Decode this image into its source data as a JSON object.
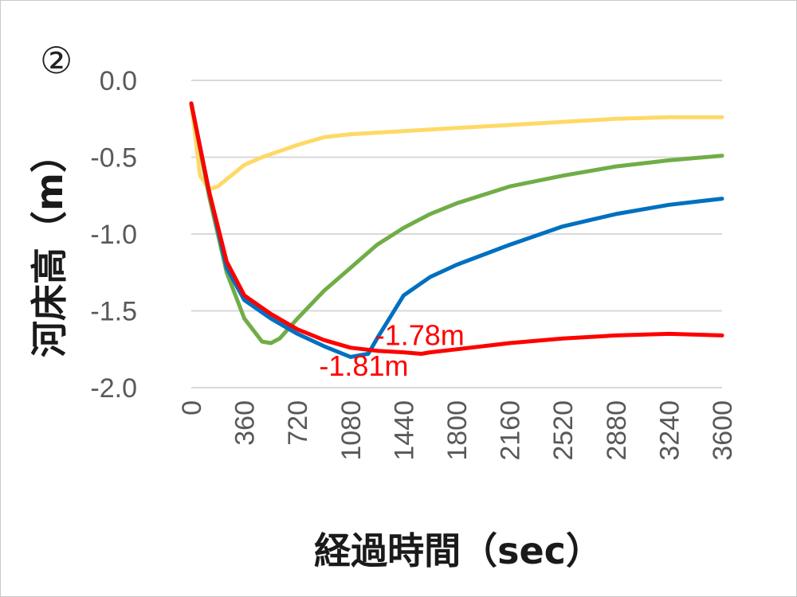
{
  "chart_data": {
    "type": "line",
    "panel_label": "②",
    "ylabel": "河床高（m）",
    "xlabel": "経過時間（sec）",
    "ylim": [
      -2.0,
      0.0
    ],
    "yticks": [
      "0.0",
      "-0.5",
      "-1.0",
      "-1.5",
      "-2.0"
    ],
    "xlim": [
      0,
      3600
    ],
    "xticks": [
      "0",
      "360",
      "720",
      "1080",
      "1440",
      "1800",
      "2160",
      "2520",
      "2880",
      "3240",
      "3600"
    ],
    "grid": true,
    "series": [
      {
        "color": "#ffd966",
        "x": [
          0,
          60,
          120,
          180,
          270,
          360,
          480,
          600,
          720,
          900,
          1080,
          1260,
          1440,
          1620,
          1800,
          2160,
          2520,
          2880,
          3240,
          3600
        ],
        "y": [
          -0.15,
          -0.62,
          -0.71,
          -0.69,
          -0.62,
          -0.55,
          -0.5,
          -0.46,
          -0.42,
          -0.37,
          -0.35,
          -0.34,
          -0.33,
          -0.32,
          -0.31,
          -0.29,
          -0.27,
          -0.25,
          -0.24,
          -0.24
        ]
      },
      {
        "color": "#70ad47",
        "x": [
          0,
          120,
          240,
          360,
          480,
          540,
          600,
          720,
          900,
          1080,
          1260,
          1440,
          1620,
          1800,
          2160,
          2520,
          2880,
          3240,
          3600
        ],
        "y": [
          -0.15,
          -0.75,
          -1.25,
          -1.55,
          -1.7,
          -1.71,
          -1.68,
          -1.55,
          -1.37,
          -1.22,
          -1.07,
          -0.96,
          -0.87,
          -0.8,
          -0.69,
          -0.62,
          -0.56,
          -0.52,
          -0.49
        ]
      },
      {
        "color": "#0070c0",
        "x": [
          0,
          120,
          240,
          360,
          540,
          720,
          900,
          1080,
          1200,
          1260,
          1440,
          1620,
          1800,
          2160,
          2520,
          2880,
          3240,
          3600
        ],
        "y": [
          -0.15,
          -0.72,
          -1.22,
          -1.43,
          -1.55,
          -1.65,
          -1.73,
          -1.8,
          -1.78,
          -1.68,
          -1.4,
          -1.28,
          -1.2,
          -1.07,
          -0.95,
          -0.87,
          -0.81,
          -0.77
        ]
      },
      {
        "color": "#ff0000",
        "x": [
          0,
          120,
          240,
          360,
          540,
          720,
          900,
          1080,
          1260,
          1440,
          1560,
          1620,
          1800,
          2160,
          2520,
          2880,
          3240,
          3600
        ],
        "y": [
          -0.15,
          -0.72,
          -1.18,
          -1.4,
          -1.52,
          -1.62,
          -1.69,
          -1.74,
          -1.76,
          -1.77,
          -1.78,
          -1.77,
          -1.75,
          -1.71,
          -1.68,
          -1.66,
          -1.65,
          -1.66
        ]
      }
    ],
    "annotations": [
      {
        "text": "-1.81m",
        "x": 1170,
        "y": -1.86,
        "color": "#ff0000"
      },
      {
        "text": "-1.78m",
        "x": 1550,
        "y": -1.66,
        "color": "#ff0000"
      }
    ]
  }
}
